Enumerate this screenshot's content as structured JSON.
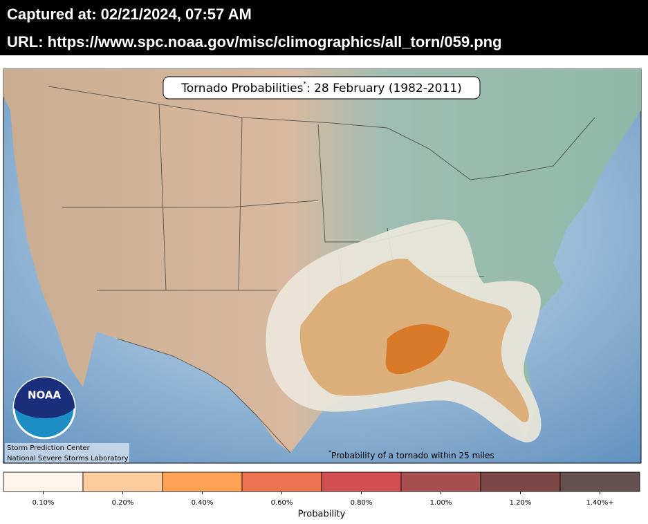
{
  "header": {
    "captured": "Captured at: 02/21/2024, 07:57 AM",
    "url": "URL: https://www.spc.noaa.gov/misc/climographics/all_torn/059.png"
  },
  "map": {
    "title": "Tornado Probabilities",
    "marker": "*",
    "title_rest": ": 28 February (1982-2011)",
    "footnote": "Probability of a tornado within 25 miles",
    "logo": "NOAA",
    "credits": [
      "Storm Prediction Center",
      "National Severe Storms Laboratory"
    ]
  },
  "legend": {
    "title": "Probability",
    "items": [
      {
        "label": "0.10%",
        "color": "#fff5eb"
      },
      {
        "label": "0.20%",
        "color": "#fecc9e"
      },
      {
        "label": "0.40%",
        "color": "#fda252"
      },
      {
        "label": "0.60%",
        "color": "#ec7250"
      },
      {
        "label": "0.80%",
        "color": "#d24f4f"
      },
      {
        "label": "1.00%",
        "color": "#a85050"
      },
      {
        "label": "1.20%",
        "color": "#7c4646"
      },
      {
        "label": "1.40%+",
        "color": "#655050"
      }
    ]
  }
}
